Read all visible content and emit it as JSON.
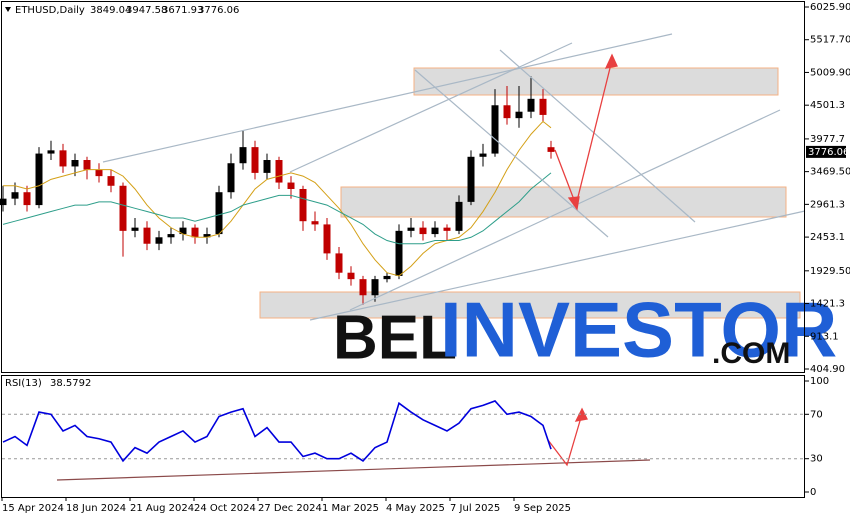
{
  "chart_data": [
    {
      "type": "candlestick",
      "title": "ETHUSD,Daily",
      "x": [
        1,
        13,
        25,
        37,
        49,
        61,
        73,
        85,
        97,
        109,
        121,
        133,
        145,
        157,
        169,
        181,
        193,
        205,
        217,
        229,
        241,
        253,
        265,
        277,
        289,
        301,
        313,
        325,
        337,
        349,
        361,
        373,
        385,
        397,
        409,
        421,
        433,
        445,
        457,
        469,
        481,
        493,
        505,
        517,
        529,
        541,
        549
      ],
      "open": [
        2950,
        3050,
        3150,
        2950,
        3750,
        3800,
        3550,
        3650,
        3500,
        3400,
        3250,
        2550,
        2600,
        2350,
        2450,
        2500,
        2600,
        2450,
        2500,
        3150,
        3600,
        3850,
        3450,
        3650,
        3300,
        3200,
        2700,
        2650,
        2200,
        1900,
        1800,
        1550,
        1800,
        1850,
        2550,
        2600,
        2500,
        2600,
        2550,
        3000,
        3700,
        3750,
        4500,
        4300,
        4400,
        4600,
        3849.04
      ],
      "high": [
        3250,
        3300,
        3250,
        3850,
        3950,
        3900,
        3750,
        3700,
        3600,
        3500,
        3300,
        2750,
        2700,
        2550,
        2600,
        2700,
        2650,
        2600,
        3250,
        3750,
        4100,
        3950,
        3750,
        3700,
        3400,
        3250,
        2850,
        2750,
        2300,
        2000,
        1850,
        1850,
        1900,
        2650,
        2750,
        2700,
        2700,
        2650,
        3100,
        3800,
        3900,
        4750,
        4800,
        4800,
        4950,
        4750,
        3947.58
      ],
      "low": [
        2850,
        2950,
        2850,
        2900,
        3650,
        3450,
        3400,
        3350,
        3300,
        3150,
        2150,
        2450,
        2250,
        2250,
        2350,
        2400,
        2350,
        2350,
        2450,
        3050,
        3500,
        3350,
        3350,
        3200,
        3050,
        2550,
        2550,
        2100,
        1800,
        1700,
        1400,
        1450,
        1750,
        1800,
        2450,
        2400,
        2450,
        2400,
        2500,
        2950,
        3550,
        3700,
        4200,
        4150,
        4300,
        4250,
        3671.93
      ],
      "close": [
        3050,
        3150,
        2950,
        3750,
        3800,
        3550,
        3650,
        3500,
        3400,
        3250,
        2550,
        2600,
        2350,
        2450,
        2500,
        2600,
        2450,
        2500,
        3150,
        3600,
        3850,
        3450,
        3650,
        3300,
        3200,
        2700,
        2650,
        2200,
        1900,
        1800,
        1550,
        1800,
        1850,
        2550,
        2600,
        2500,
        2600,
        2550,
        3000,
        3700,
        3750,
        4500,
        4300,
        4400,
        4600,
        4350,
        3776.06
      ],
      "up_color": "#000000",
      "down_color": "#c00000",
      "series": [
        {
          "color": "#d4a017",
          "values": [
            3250,
            3250,
            3200,
            3250,
            3350,
            3400,
            3450,
            3500,
            3500,
            3500,
            3400,
            3200,
            2950,
            2750,
            2600,
            2500,
            2450,
            2450,
            2500,
            2700,
            2950,
            3200,
            3350,
            3400,
            3450,
            3400,
            3300,
            3100,
            2900,
            2650,
            2350,
            2100,
            1900,
            1850,
            2000,
            2200,
            2350,
            2400,
            2450,
            2600,
            2850,
            3150,
            3500,
            3800,
            4050,
            4250,
            4150
          ]
        },
        {
          "color": "#2e9e8a",
          "values": [
            2650,
            2700,
            2750,
            2800,
            2850,
            2900,
            2950,
            2950,
            3000,
            3000,
            2950,
            2900,
            2850,
            2800,
            2750,
            2750,
            2700,
            2750,
            2800,
            2850,
            2950,
            3000,
            3050,
            3100,
            3100,
            3050,
            3000,
            2950,
            2850,
            2750,
            2650,
            2500,
            2400,
            2350,
            2350,
            2350,
            2400,
            2400,
            2400,
            2450,
            2550,
            2700,
            2850,
            3000,
            3200,
            3350,
            3450
          ]
        }
      ],
      "xlim": [
        0,
        803
      ],
      "ylim": [
        342.8,
        6103.5
      ],
      "yticks": [
        {
          "value": 6025.9,
          "label": "6025.90"
        },
        {
          "value": 5517.7,
          "label": "5517.70"
        },
        {
          "value": 5009.9,
          "label": "5009.90"
        },
        4501.3,
        3977.7,
        {
          "value": 3469.5,
          "label": "3469.50"
        },
        2961.3,
        2453.1,
        {
          "value": 1929.5,
          "label": "1929.50"
        },
        1421.3,
        913.1,
        {
          "value": 404.9,
          "label": "404.90"
        }
      ]
    },
    {
      "type": "line",
      "title": "RSI(13)",
      "x": [
        1,
        13,
        25,
        37,
        49,
        61,
        73,
        85,
        97,
        109,
        121,
        133,
        145,
        157,
        169,
        181,
        193,
        205,
        217,
        229,
        241,
        253,
        265,
        277,
        289,
        301,
        313,
        325,
        337,
        349,
        361,
        373,
        385,
        397,
        409,
        421,
        433,
        445,
        457,
        469,
        481,
        493,
        505,
        517,
        529,
        541,
        549
      ],
      "color": "#0000dd",
      "values": [
        45,
        50,
        42,
        72,
        70,
        55,
        60,
        50,
        48,
        45,
        28,
        40,
        35,
        45,
        50,
        55,
        45,
        50,
        68,
        72,
        75,
        50,
        58,
        45,
        45,
        32,
        35,
        30,
        30,
        35,
        28,
        40,
        45,
        80,
        72,
        65,
        60,
        55,
        62,
        75,
        78,
        82,
        70,
        72,
        68,
        60,
        38.5792
      ],
      "xlim": [
        0,
        803
      ],
      "ylim": [
        -4.5,
        104.5
      ],
      "yticks": [
        100,
        70,
        30,
        0
      ],
      "xticks": [
        {
          "value": 0,
          "label": "15 Apr 2024"
        },
        {
          "value": 64,
          "label": "18 Jun 2024"
        },
        {
          "value": 128,
          "label": "21 Aug 2024"
        },
        {
          "value": 192,
          "label": "24 Oct 2024"
        },
        {
          "value": 256,
          "label": "27 Dec 2024"
        },
        {
          "value": 320,
          "label": "1 Mar 2025"
        },
        {
          "value": 384,
          "label": "4 May 2025"
        },
        {
          "value": 448,
          "label": "7 Jul 2025"
        },
        {
          "value": 512,
          "label": "9 Sep 2025"
        }
      ]
    }
  ],
  "watermark": [
    "BEL",
    "INVESTOR",
    ".COM"
  ]
}
